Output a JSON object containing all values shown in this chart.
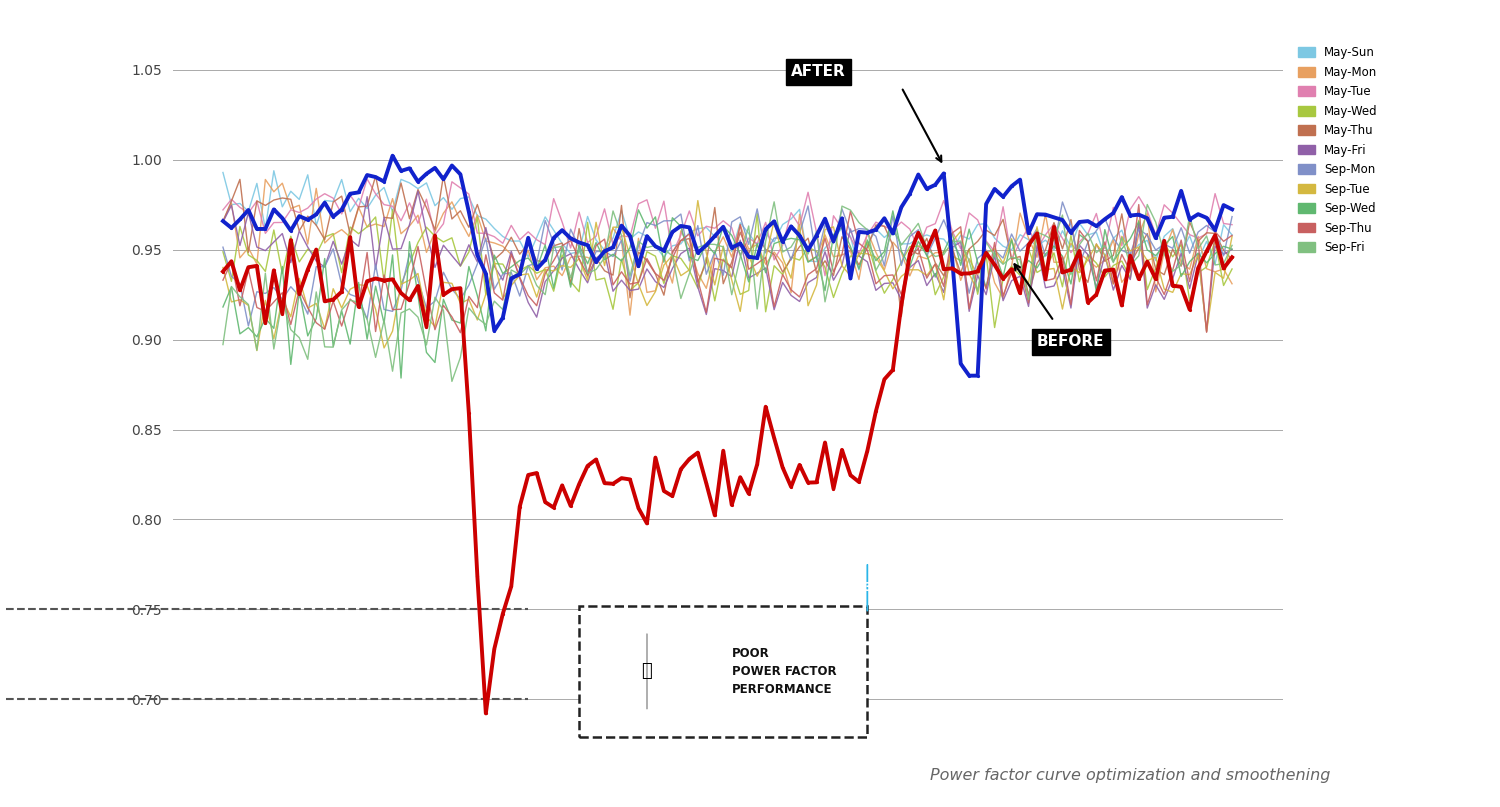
{
  "background_color": "#ffffff",
  "legend_entries": [
    "May-Sun",
    "May-Mon",
    "May-Tue",
    "May-Wed",
    "May-Thu",
    "May-Fri",
    "Sep-Mon",
    "Sep-Tue",
    "Sep-Wed",
    "Sep-Thu",
    "Sep-Fri"
  ],
  "may_colors": [
    "#7dc8e3",
    "#e8a060",
    "#e080b0",
    "#a8c840",
    "#c07050",
    "#9060a8"
  ],
  "sep_colors": [
    "#8090c8",
    "#d4b840",
    "#60b870",
    "#c86060",
    "#80c080"
  ],
  "yticks": [
    0.7,
    0.75,
    0.8,
    0.85,
    0.9,
    0.95,
    1.0,
    1.05
  ],
  "ylim_low": 0.676,
  "ylim_high": 1.062,
  "note_text": "Power factor curve optimization and smoothening",
  "after_text": "AFTER",
  "before_text": "BEFORE",
  "poor_text": "POOR\nPOWER FACTOR\nPERFORMANCE",
  "num_points": 120
}
